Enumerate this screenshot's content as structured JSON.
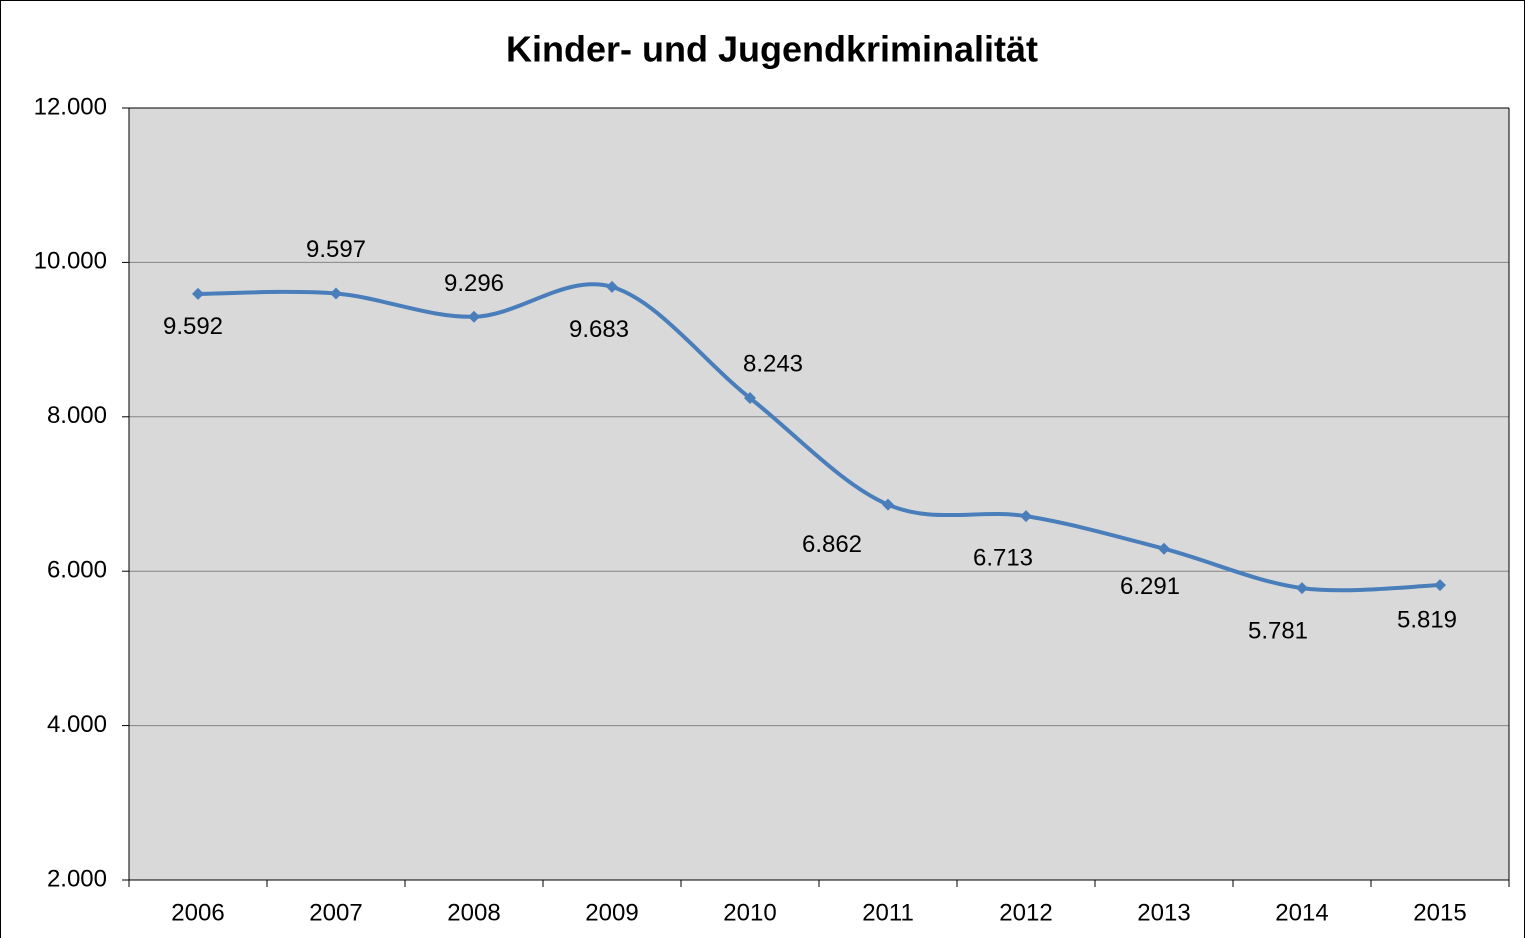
{
  "chart_data": {
    "type": "line",
    "title": "Kinder- und Jugendkriminalität",
    "categories": [
      "2006",
      "2007",
      "2008",
      "2009",
      "2010",
      "2011",
      "2012",
      "2013",
      "2014",
      "2015"
    ],
    "series": [
      {
        "name": "Kinder- und Jugendkriminalität",
        "color": "#4a7ebb",
        "values": [
          9592,
          9597,
          9296,
          9683,
          8243,
          6862,
          6713,
          6291,
          5781,
          5819
        ],
        "value_labels": [
          "9.592",
          "9.597",
          "9.296",
          "9.683",
          "8.243",
          "6.862",
          "6.713",
          "6.291",
          "5.781",
          "5.819"
        ]
      }
    ],
    "ylim": [
      2000,
      12000
    ],
    "yticks": [
      {
        "value": 2000,
        "label": "2.000"
      },
      {
        "value": 4000,
        "label": "4.000"
      },
      {
        "value": 6000,
        "label": "6.000"
      },
      {
        "value": 8000,
        "label": "8.000"
      },
      {
        "value": 10000,
        "label": "10.000"
      },
      {
        "value": 12000,
        "label": "12.000"
      }
    ],
    "grid": true
  }
}
